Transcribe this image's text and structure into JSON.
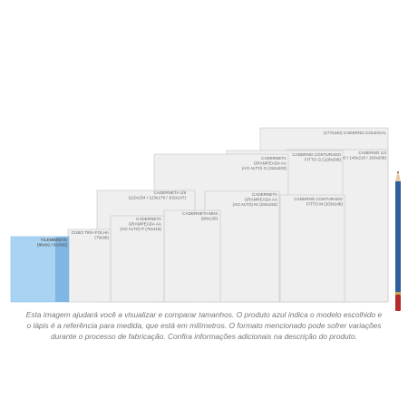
{
  "items": [
    {
      "lines": [
        "(177x240) CADERNO COLEGIAL"
      ]
    },
    {
      "lines": [
        "CADERNO 1/4",
        "(140x200 / 140x210 / 150x208)"
      ]
    },
    {
      "lines": [
        "CADERNO COSTURADO",
        "FITTO G (128x208)"
      ]
    },
    {
      "lines": [
        "CADERNETA",
        "GRAMPEADA AA",
        "(AO ALTO) G (152x203)"
      ]
    },
    {
      "lines": [
        "CADERNETA 1/8",
        "(110x154 / 123x178 / 102x147)"
      ]
    },
    {
      "lines": [
        "CADERNETA",
        "GRAMPEADA AA",
        "(AO ALTO) M (104x152)"
      ]
    },
    {
      "lines": [
        "CADERNO COSTURADO",
        "FITTO M (103x146)"
      ]
    },
    {
      "lines": [
        "CADERNETA MINI",
        "(90x130)"
      ]
    },
    {
      "lines": [
        "CADERNETA",
        "GRAMPEADA AA",
        "(AO ALTO) P (76x118)"
      ]
    },
    {
      "lines": [
        "CUBO TIRA FOLHA",
        "(79x98)"
      ]
    },
    {
      "lines": [
        "TILEMBRETE",
        "(80x91 / 91X92)"
      ]
    }
  ],
  "caption": [
    "Esta imagem ajudará você a visualizar e comparar tamanhos. O produto azul indica o modelo escolhido e",
    "o lápis é a referência para medida, que está em milímetros. O formato mencionado pode sofrer variações",
    "durante o processo de fabricação. Confira informações adicionais na descrição do produto."
  ]
}
